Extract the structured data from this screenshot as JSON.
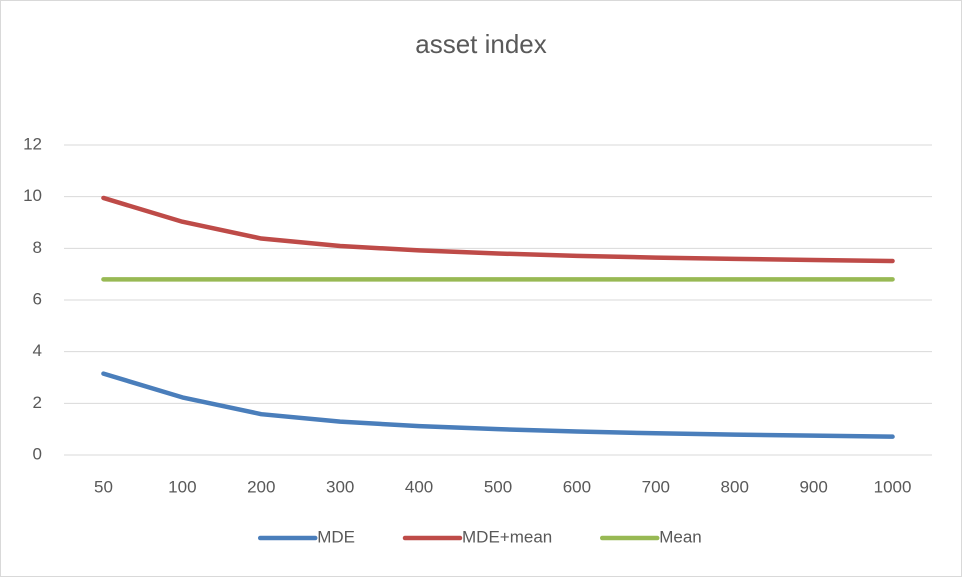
{
  "chart_data": {
    "type": "line",
    "title": "asset index",
    "categories": [
      "50",
      "100",
      "200",
      "300",
      "400",
      "500",
      "600",
      "700",
      "800",
      "900",
      "1000"
    ],
    "series": [
      {
        "name": "MDE",
        "color": "#4a7ebb",
        "values": [
          3.15,
          2.23,
          1.58,
          1.29,
          1.12,
          1.0,
          0.91,
          0.84,
          0.79,
          0.75,
          0.71
        ]
      },
      {
        "name": "MDE+mean",
        "color": "#be4b48",
        "values": [
          9.95,
          9.03,
          8.38,
          8.09,
          7.92,
          7.8,
          7.71,
          7.64,
          7.59,
          7.55,
          7.51
        ]
      },
      {
        "name": "Mean",
        "color": "#98b954",
        "values": [
          6.8,
          6.8,
          6.8,
          6.8,
          6.8,
          6.8,
          6.8,
          6.8,
          6.8,
          6.8,
          6.8
        ]
      }
    ],
    "ylim": [
      0,
      12
    ],
    "yticks": [
      0,
      2,
      4,
      6,
      8,
      10,
      12
    ],
    "grid": true,
    "legend": "bottom"
  }
}
